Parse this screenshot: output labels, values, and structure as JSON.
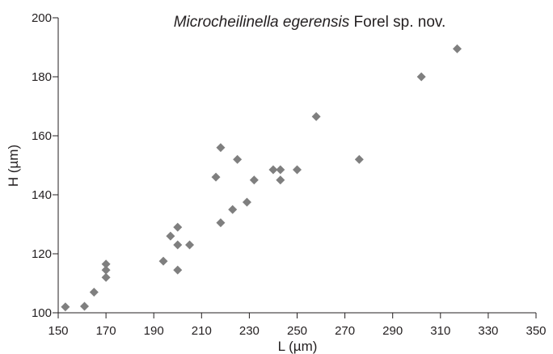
{
  "chart_data": {
    "type": "scatter",
    "title": {
      "species": "Microcheilinella egerensis",
      "rest": " Forel sp. nov."
    },
    "xlabel": "L (µm)",
    "ylabel": "H (µm)",
    "xlim": [
      150,
      350
    ],
    "ylim": [
      100,
      200
    ],
    "xticks": [
      150,
      170,
      190,
      210,
      230,
      250,
      270,
      290,
      310,
      330,
      350
    ],
    "yticks": [
      100,
      120,
      140,
      160,
      180,
      200
    ],
    "grid": false,
    "marker": "diamond",
    "marker_color": "#7f7f7f",
    "points": [
      [
        153,
        102
      ],
      [
        161,
        102.2
      ],
      [
        165,
        107
      ],
      [
        170,
        112
      ],
      [
        170,
        114.5
      ],
      [
        170,
        116.5
      ],
      [
        194,
        117.5
      ],
      [
        197,
        126
      ],
      [
        200,
        114.5
      ],
      [
        200,
        123
      ],
      [
        200,
        129
      ],
      [
        205,
        123
      ],
      [
        216,
        146
      ],
      [
        218,
        130.5
      ],
      [
        218,
        156
      ],
      [
        223,
        135
      ],
      [
        225,
        152
      ],
      [
        229,
        137.5
      ],
      [
        232,
        145
      ],
      [
        240,
        148.5
      ],
      [
        243,
        145
      ],
      [
        243,
        148.5
      ],
      [
        250,
        148.5
      ],
      [
        258,
        166.5
      ],
      [
        276,
        152
      ],
      [
        302,
        180
      ],
      [
        317,
        189.5
      ]
    ]
  }
}
